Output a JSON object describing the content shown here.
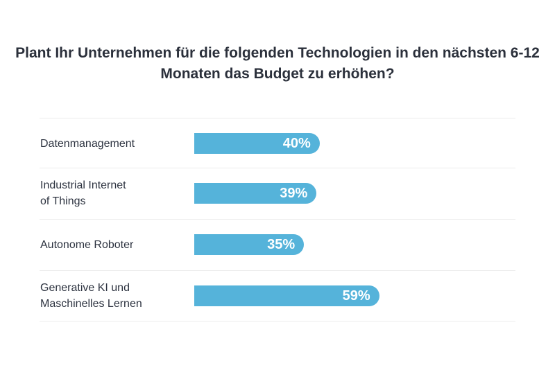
{
  "chart_data": {
    "type": "bar",
    "orientation": "horizontal",
    "title": "Plant Ihr Unternehmen für die folgenden Technologien in den nächsten 6-12 Monaten das Budget zu erhöhen?",
    "categories": [
      "Datenmanagement",
      "Industrial Internet\nof Things",
      "Autonome Roboter",
      "Generative KI und\nMaschinelles Lernen"
    ],
    "values": [
      40,
      39,
      35,
      59
    ],
    "value_labels": [
      "40%",
      "39%",
      "35%",
      "59%"
    ],
    "unit": "%",
    "xlim": [
      0,
      100
    ],
    "color": "#55b3da",
    "grid": false
  }
}
